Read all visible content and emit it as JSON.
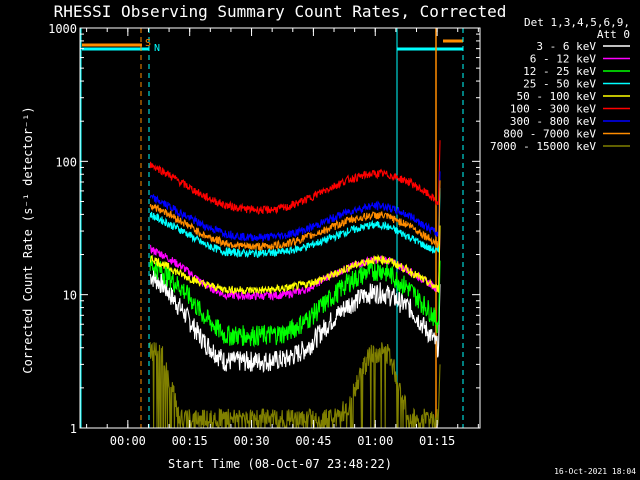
{
  "chart_data": {
    "type": "line",
    "title": "RHESSI Observing Summary Count Rates, Corrected",
    "xlabel": "Start Time (08-Oct-07 23:48:22)",
    "ylabel": "Corrected Count Rate (s⁻¹ detector⁻¹)",
    "y_scale": "log",
    "ylim": [
      1,
      1000
    ],
    "xlim_minutes": [
      0,
      97
    ],
    "x_ticks": [
      {
        "label": "00:00",
        "minutes": 11.6
      },
      {
        "label": "00:15",
        "minutes": 26.6
      },
      {
        "label": "00:30",
        "minutes": 41.6
      },
      {
        "label": "00:45",
        "minutes": 56.6
      },
      {
        "label": "01:00",
        "minutes": 71.6
      },
      {
        "label": "01:15",
        "minutes": 86.6
      }
    ],
    "y_ticks": [
      {
        "label": "1",
        "value": 1
      },
      {
        "label": "10",
        "value": 10
      },
      {
        "label": "100",
        "value": 100
      },
      {
        "label": "1000",
        "value": 1000
      }
    ],
    "legend_header": [
      "Det 1,3,4,5,6,9,",
      "Att 0"
    ],
    "legend_position": "right",
    "x_minutes": [
      17,
      20,
      25,
      30,
      35,
      40,
      45,
      50,
      55,
      60,
      65,
      70,
      73,
      75,
      80,
      85,
      87
    ],
    "series": [
      {
        "name": "3 - 6 keV",
        "color": "#ffffff",
        "values": [
          14,
          12,
          7.5,
          4.5,
          3.2,
          3.2,
          3.2,
          3.3,
          4.0,
          6.0,
          8.5,
          10.3,
          10.5,
          10,
          8,
          5,
          4
        ]
      },
      {
        "name": "6 - 12 keV",
        "color": "#ff00ff",
        "values": [
          22,
          20,
          16,
          12,
          10,
          9.8,
          9.8,
          10,
          11,
          13.5,
          16,
          18,
          18.5,
          18,
          15,
          12,
          11
        ]
      },
      {
        "name": "12 - 25 keV",
        "color": "#00ff00",
        "values": [
          17,
          15,
          11,
          7,
          5,
          5,
          5,
          5.2,
          6.5,
          9,
          12.5,
          15,
          15.5,
          14.5,
          11,
          7.5,
          6
        ]
      },
      {
        "name": "25 - 50 keV",
        "color": "#00ffff",
        "values": [
          40,
          36,
          30,
          24,
          21,
          20.5,
          20.5,
          21,
          23,
          26,
          30,
          33,
          33.5,
          32,
          27,
          22,
          21
        ]
      },
      {
        "name": "50 - 100 keV",
        "color": "#ffff00",
        "values": [
          19,
          17,
          14,
          12,
          11,
          10.8,
          10.8,
          11.2,
          12,
          13.5,
          16,
          18,
          18.5,
          18,
          15,
          12,
          11
        ]
      },
      {
        "name": "100 - 300 keV",
        "color": "#ff0000",
        "values": [
          95,
          85,
          68,
          55,
          47,
          44,
          43,
          45,
          52,
          62,
          73,
          80,
          81,
          79,
          70,
          55,
          48
        ]
      },
      {
        "name": "300 - 800 keV",
        "color": "#0000ff",
        "values": [
          54,
          49,
          40,
          33,
          29,
          27,
          27,
          28,
          31,
          36,
          42,
          46,
          46.5,
          45,
          39,
          31,
          28
        ]
      },
      {
        "name": "800 - 7000 keV",
        "color": "#ff8c00",
        "values": [
          47,
          43,
          35,
          28,
          24.5,
          23,
          23,
          24,
          27,
          31,
          36,
          39,
          39.5,
          38,
          33,
          26,
          24
        ]
      },
      {
        "name": "7000 - 15000 keV",
        "color": "#808000",
        "values": [
          3.8,
          3.6,
          1,
          1,
          1,
          1,
          1,
          1,
          1,
          1,
          1.5,
          3.5,
          3.8,
          3.6,
          1.2,
          1,
          1
        ]
      }
    ],
    "annotations": [
      {
        "text": "S",
        "color": "#ff8c00"
      },
      {
        "text": "N",
        "color": "#00ffff"
      }
    ]
  },
  "timestamp": "16-Oct-2021 18:04"
}
